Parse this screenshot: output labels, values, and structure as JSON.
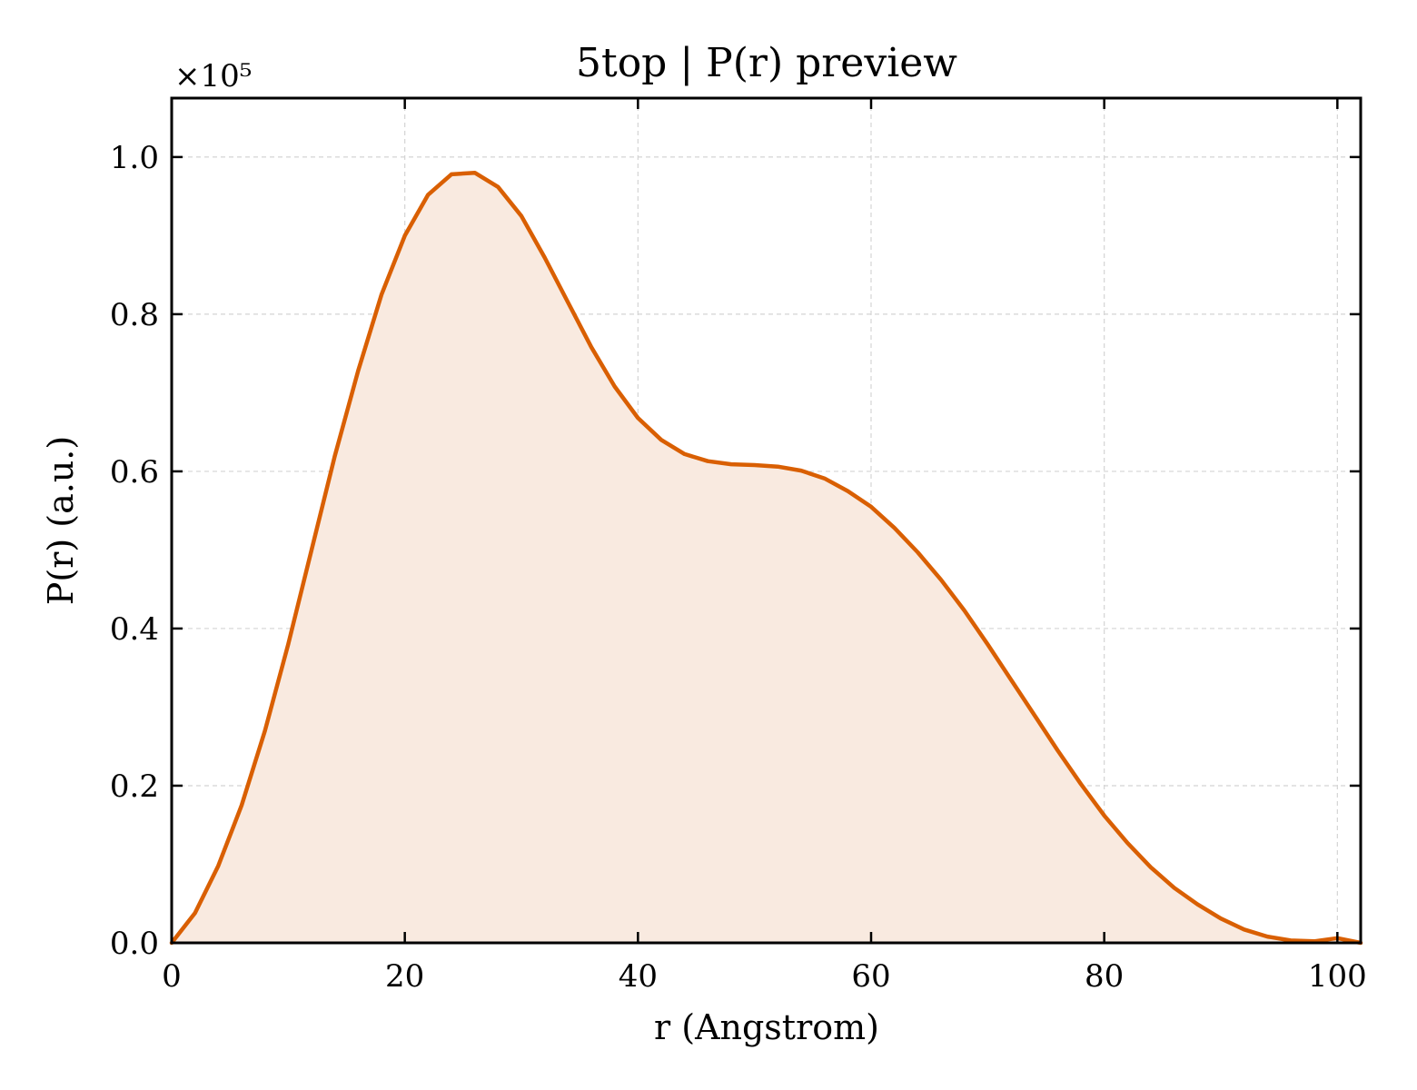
{
  "chart_data": {
    "type": "area",
    "title": "5top | P(r) preview",
    "xlabel": "r (Angstrom)",
    "ylabel": "P(r) (a.u.)",
    "y_multiplier_label": "×10⁵",
    "xlim": [
      0,
      102
    ],
    "ylim": [
      0,
      1.075
    ],
    "x_ticks": [
      0,
      20,
      40,
      60,
      80,
      100
    ],
    "x_tick_labels": [
      "0",
      "20",
      "40",
      "60",
      "80",
      "100"
    ],
    "y_ticks": [
      0,
      0.2,
      0.4,
      0.6,
      0.8,
      1.0
    ],
    "y_tick_labels": [
      "0.0",
      "0.2",
      "0.4",
      "0.6",
      "0.8",
      "1.0"
    ],
    "grid": true,
    "series": [
      {
        "x": [
          0,
          2,
          4,
          6,
          8,
          10,
          12,
          14,
          16,
          18,
          20,
          22,
          24,
          26,
          28,
          30,
          32,
          34,
          36,
          38,
          40,
          42,
          44,
          46,
          48,
          50,
          52,
          54,
          56,
          58,
          60,
          62,
          64,
          66,
          68,
          70,
          72,
          74,
          76,
          78,
          80,
          82,
          84,
          86,
          88,
          90,
          92,
          94,
          96,
          98,
          100,
          102
        ],
        "y": [
          0.0,
          0.038,
          0.098,
          0.175,
          0.27,
          0.38,
          0.5,
          0.62,
          0.728,
          0.825,
          0.9,
          0.952,
          0.978,
          0.98,
          0.962,
          0.925,
          0.872,
          0.815,
          0.758,
          0.708,
          0.668,
          0.64,
          0.622,
          0.613,
          0.609,
          0.608,
          0.606,
          0.601,
          0.591,
          0.575,
          0.555,
          0.528,
          0.497,
          0.462,
          0.423,
          0.38,
          0.335,
          0.29,
          0.245,
          0.202,
          0.162,
          0.127,
          0.096,
          0.07,
          0.049,
          0.031,
          0.017,
          0.008,
          0.003,
          0.002,
          0.006,
          0.0
        ],
        "color": "#d95f02",
        "fill_color": "#f9eae0"
      }
    ]
  }
}
